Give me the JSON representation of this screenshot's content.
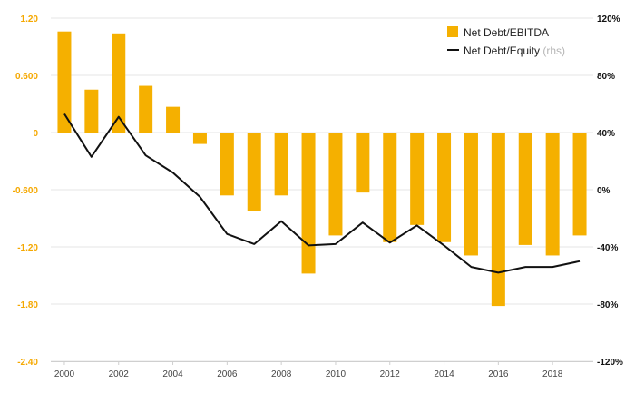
{
  "chart_data": {
    "type": "bar+line",
    "title": "",
    "xlabel": "",
    "ylabel": "",
    "categories": [
      2000,
      2001,
      2002,
      2003,
      2004,
      2005,
      2006,
      2007,
      2008,
      2009,
      2010,
      2011,
      2012,
      2013,
      2014,
      2015,
      2016,
      2017,
      2018,
      2019
    ],
    "x_tick_labels": [
      "2000",
      "2002",
      "2004",
      "2006",
      "2008",
      "2010",
      "2012",
      "2014",
      "2016",
      "2018"
    ],
    "series": [
      {
        "name": "Net Debt/EBITDA",
        "type": "bar",
        "axis": "left",
        "color": "#f5b000",
        "values": [
          1.06,
          0.45,
          1.04,
          0.49,
          0.27,
          -0.12,
          -0.66,
          -0.82,
          -0.66,
          -1.48,
          -1.08,
          -0.63,
          -1.15,
          -0.97,
          -1.15,
          -1.29,
          -1.82,
          -1.18,
          -1.29,
          -1.08
        ]
      },
      {
        "name": "Net Debt/Equity",
        "name_suffix": "(rhs)",
        "type": "line",
        "axis": "right",
        "color": "#111111",
        "values": [
          53,
          23,
          51,
          24,
          12,
          -5,
          -31,
          -38,
          -22,
          -39,
          -38,
          -23,
          -37,
          -25,
          -39,
          -54,
          -58,
          -54,
          -54,
          -50
        ]
      }
    ],
    "y_left": {
      "ylim": [
        -2.4,
        1.2
      ],
      "ticks": [
        "1.20",
        "0.600",
        "0",
        "-0.600",
        "-1.20",
        "-1.80",
        "-2.40"
      ],
      "color": "#f5a800"
    },
    "y_right": {
      "ylim": [
        -120,
        120
      ],
      "ticks": [
        "120%",
        "80%",
        "40%",
        "0%",
        "-40%",
        "-80%",
        "-120%"
      ],
      "color": "#111111"
    },
    "grid": true,
    "legend": "top-right"
  }
}
